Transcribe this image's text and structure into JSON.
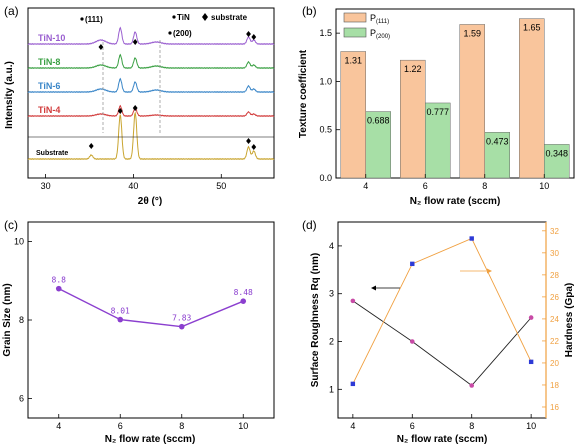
{
  "colors": {
    "tin10": "#9a5fd0",
    "tin8": "#3aa043",
    "tin6": "#3a86c8",
    "tin4": "#d23c3c",
    "substrate": "#c9a530",
    "bar_p111": "#f9c59c",
    "bar_p200": "#a7dfa6",
    "grain_line": "#8b3fcf",
    "rough_line": "#222222",
    "rough_point": "#c84aa6",
    "hard_line": "#f0a040",
    "hard_point": "#2d3ad6"
  },
  "chart_data": [
    {
      "panel": "(a)",
      "type": "line",
      "xlabel": "2θ (°)",
      "ylabel": "Intensity (a.u.)",
      "xlim": [
        28,
        56
      ],
      "xticks": [
        "30",
        "40",
        "50"
      ],
      "legend": {
        "tin_label": "TiN",
        "substrate_label": "substrate"
      },
      "annotations": [
        "(111)",
        "(200)"
      ],
      "series": [
        {
          "name": "TiN-10",
          "color_key": "tin10"
        },
        {
          "name": "TiN-8",
          "color_key": "tin8"
        },
        {
          "name": "TiN-6",
          "color_key": "tin6"
        },
        {
          "name": "TiN-4",
          "color_key": "tin4"
        },
        {
          "name": "Substrate",
          "color_key": "substrate"
        }
      ],
      "peaks_2theta": [
        35.2,
        36.3,
        38.5,
        40.2,
        42.6,
        53.1,
        53.7
      ]
    },
    {
      "panel": "(b)",
      "type": "bar",
      "categories": [
        "4",
        "6",
        "8",
        "10"
      ],
      "series": [
        {
          "name": "P(111)",
          "name_main": "P",
          "name_sub": "(111)",
          "values": [
            1.31,
            1.22,
            1.59,
            1.65
          ],
          "labels": [
            "1.31",
            "1.22",
            "1.59",
            "1.65"
          ]
        },
        {
          "name": "P(200)",
          "name_main": "P",
          "name_sub": "(200)",
          "values": [
            0.688,
            0.777,
            0.473,
            0.348
          ],
          "labels": [
            "0.688",
            "0.777",
            "0.473",
            "0.348"
          ]
        }
      ],
      "xlabel": "N₂ flow rate (sccm)",
      "ylabel": "Texture coefficient",
      "ylim": [
        0,
        1.75
      ],
      "yticks": [
        "0.0",
        "0.5",
        "1.0",
        "1.5"
      ],
      "legend_position": "top-left"
    },
    {
      "panel": "(c)",
      "type": "line",
      "x": [
        4,
        6,
        8,
        10
      ],
      "values": [
        8.8,
        8.01,
        7.83,
        8.48
      ],
      "labels": [
        "8.8",
        "8.01",
        "7.83",
        "8.48"
      ],
      "xlabel": "N₂ flow rate (sccm)",
      "ylabel": "Grain Size (nm)",
      "xlim": [
        3,
        11
      ],
      "ylim": [
        5.5,
        10.5
      ],
      "xticks": [
        "4",
        "6",
        "8",
        "10"
      ],
      "yticks": [
        "6",
        "8",
        "10"
      ]
    },
    {
      "panel": "(d)",
      "type": "line",
      "x": [
        4,
        6,
        8,
        10
      ],
      "series": [
        {
          "name": "Surface Roughness Rq",
          "axis": "left",
          "values": [
            2.85,
            2.0,
            1.08,
            2.5
          ]
        },
        {
          "name": "Hardness",
          "axis": "right",
          "values": [
            18.1,
            29.0,
            31.3,
            20.1
          ]
        }
      ],
      "xlabel": "N₂ flow rate (sccm)",
      "ylabel": "Surface Roughness Rq (nm)",
      "y2label": "Hardness (Gpa)",
      "xlim": [
        3.5,
        10.5
      ],
      "ylim": [
        0.4,
        4.5
      ],
      "y2lim": [
        15,
        32.8
      ],
      "xticks": [
        "4",
        "6",
        "8",
        "10"
      ],
      "yticks": [
        "1",
        "2",
        "3",
        "4"
      ],
      "y2ticks": [
        "16",
        "18",
        "20",
        "22",
        "24",
        "26",
        "28",
        "30",
        "32"
      ]
    }
  ]
}
